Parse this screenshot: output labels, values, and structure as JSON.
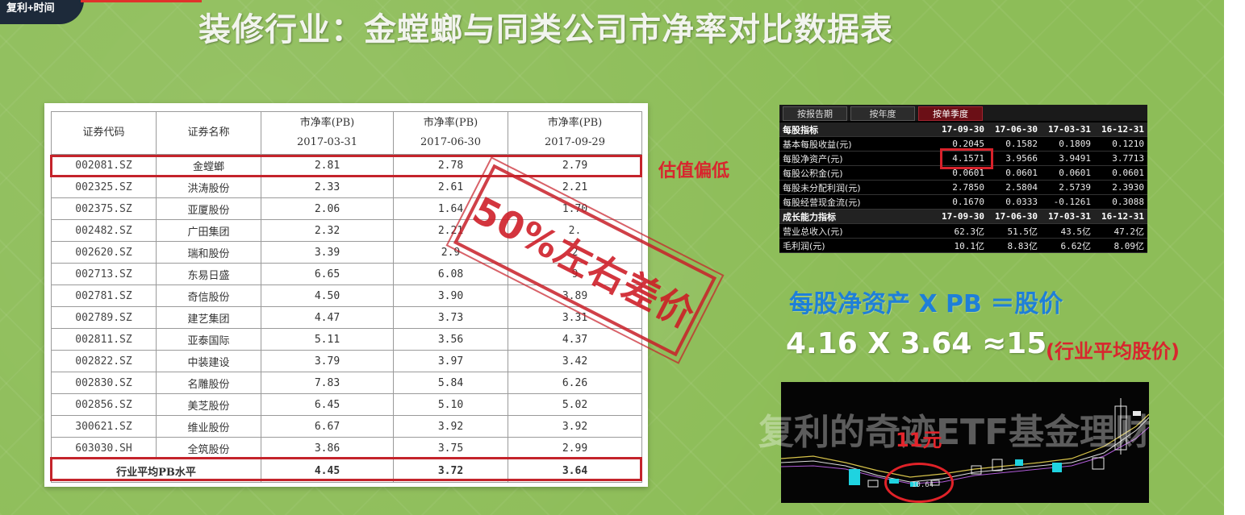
{
  "overlay": {
    "avatar_text": "复利+时间"
  },
  "page": {
    "title": "装修行业：金螳螂与同类公司市净率对比数据表"
  },
  "pb_table": {
    "headers": {
      "code": "证券代码",
      "name": "证券名称",
      "col1_line1": "市净率(PB)",
      "col1_line2": "2017-03-31",
      "col2_line1": "市净率(PB)",
      "col2_line2": "2017-06-30",
      "col3_line1": "市净率(PB)",
      "col3_line2": "2017-09-29"
    },
    "rows": [
      {
        "code": "002081.SZ",
        "name": "金螳螂",
        "v1": "2.81",
        "v2": "2.78",
        "v3": "2.79"
      },
      {
        "code": "002325.SZ",
        "name": "洪涛股份",
        "v1": "2.33",
        "v2": "2.61",
        "v3": "2.21"
      },
      {
        "code": "002375.SZ",
        "name": "亚厦股份",
        "v1": "2.06",
        "v2": "1.64",
        "v3": "1.70"
      },
      {
        "code": "002482.SZ",
        "name": "广田集团",
        "v1": "2.32",
        "v2": "2.21",
        "v3": "2."
      },
      {
        "code": "002620.SZ",
        "name": "瑞和股份",
        "v1": "3.39",
        "v2": "2.9",
        "v3": "2"
      },
      {
        "code": "002713.SZ",
        "name": "东易日盛",
        "v1": "6.65",
        "v2": "6.08",
        "v3": "9"
      },
      {
        "code": "002781.SZ",
        "name": "奇信股份",
        "v1": "4.50",
        "v2": "3.90",
        "v3": "3.89"
      },
      {
        "code": "002789.SZ",
        "name": "建艺集团",
        "v1": "4.47",
        "v2": "3.73",
        "v3": "3.31"
      },
      {
        "code": "002811.SZ",
        "name": "亚泰国际",
        "v1": "5.11",
        "v2": "3.56",
        "v3": "4.37"
      },
      {
        "code": "002822.SZ",
        "name": "中装建设",
        "v1": "3.79",
        "v2": "3.97",
        "v3": "3.42"
      },
      {
        "code": "002830.SZ",
        "name": "名雕股份",
        "v1": "7.83",
        "v2": "5.84",
        "v3": "6.26"
      },
      {
        "code": "002856.SZ",
        "name": "美芝股份",
        "v1": "6.45",
        "v2": "5.10",
        "v3": "5.02"
      },
      {
        "code": "300621.SZ",
        "name": "维业股份",
        "v1": "6.67",
        "v2": "3.92",
        "v3": "3.92"
      },
      {
        "code": "603030.SH",
        "name": "全筑股份",
        "v1": "3.86",
        "v2": "3.75",
        "v3": "2.99"
      }
    ],
    "footer": {
      "label": "行业平均PB水平",
      "v1": "4.45",
      "v2": "3.72",
      "v3": "3.64"
    }
  },
  "annotations": {
    "undervalued": "估值偏低",
    "stamp": "50%左右差价"
  },
  "fin_panel": {
    "tabs": [
      "按报告期",
      "按年度",
      "按单季度"
    ],
    "active_tab_index": 2,
    "section1": {
      "title": "每股指标",
      "dates": [
        "17-09-30",
        "17-06-30",
        "17-03-31",
        "16-12-31"
      ]
    },
    "section1_rows": [
      {
        "label": "基本每股收益(元)",
        "vals": [
          "0.2045",
          "0.1582",
          "0.1809",
          "0.1210"
        ]
      },
      {
        "label": "每股净资产(元)",
        "vals": [
          "4.1571",
          "3.9566",
          "3.9491",
          "3.7713"
        ]
      },
      {
        "label": "每股公积金(元)",
        "vals": [
          "0.0601",
          "0.0601",
          "0.0601",
          "0.0601"
        ]
      },
      {
        "label": "每股未分配利润(元)",
        "vals": [
          "2.7850",
          "2.5804",
          "2.5739",
          "2.3930"
        ]
      },
      {
        "label": "每股经营现金流(元)",
        "vals": [
          "0.1670",
          "0.0333",
          "-0.1261",
          "0.3088"
        ]
      }
    ],
    "section2": {
      "title": "成长能力指标",
      "dates": [
        "17-09-30",
        "17-06-30",
        "17-03-31",
        "16-12-31"
      ]
    },
    "section2_rows": [
      {
        "label": "营业总收入(元)",
        "vals": [
          "62.3亿",
          "51.5亿",
          "43.5亿",
          "47.2亿"
        ]
      },
      {
        "label": "毛利润(元)",
        "vals": [
          "10.1亿",
          "8.83亿",
          "6.62亿",
          "8.09亿"
        ]
      }
    ]
  },
  "formula": {
    "line1": "每股净资产 X PB ＝股价",
    "line2": "4.16 X 3.64 ≈15",
    "line2_note": "(行业平均股价)"
  },
  "kline": {
    "watermark": "复利的奇迹ETF基金理财",
    "price_label": "11元",
    "low_tag": "10.64"
  },
  "colors": {
    "background": "#8dbd58",
    "accent_red": "#d8262e",
    "formula_blue": "#1e7fd8",
    "panel_tab_active": "#6b0f16"
  }
}
